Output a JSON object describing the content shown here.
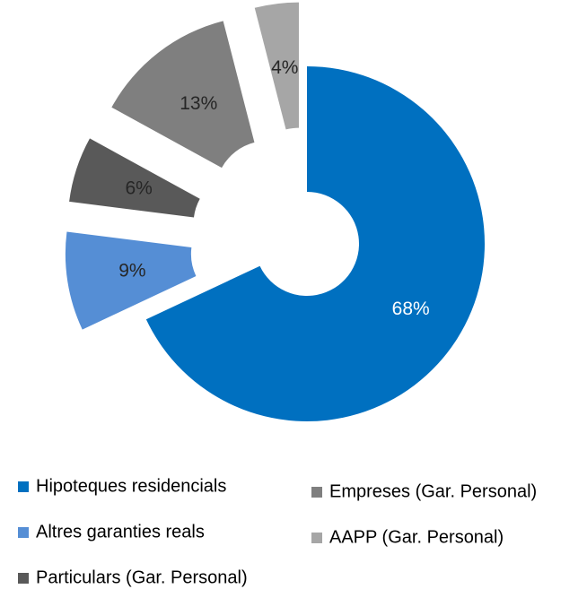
{
  "chart_data": {
    "type": "donut",
    "categories": [
      "Hipoteques residencials",
      "Altres garanties reals",
      "Particulars (Gar. Personal)",
      "Empreses (Gar. Personal)",
      "AAPP (Gar. Personal)"
    ],
    "values": [
      68,
      9,
      6,
      13,
      4
    ],
    "value_labels": [
      "68%",
      "9%",
      "6%",
      "13%",
      "4%"
    ],
    "colors": [
      "#0070c0",
      "#558ed5",
      "#595959",
      "#7f7f7f",
      "#a6a6a6"
    ],
    "legend": "bottom"
  }
}
